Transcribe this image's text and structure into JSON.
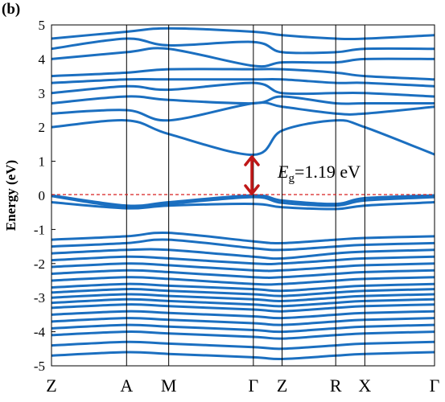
{
  "panel_label": "(b)",
  "gap_annotation": {
    "symbol": "E",
    "subscript": "g",
    "text": "=1.19 eV"
  },
  "colors": {
    "bands": "#1b6fc0",
    "fermi_line": "#d62020",
    "gap_arrow": "#c01818"
  },
  "chart_data": {
    "type": "line",
    "ylabel": "Energy (eV)",
    "ylim": [
      -5,
      5
    ],
    "yticks": [
      "5",
      "4",
      "3",
      "2",
      "1",
      "0",
      "-1",
      "-2",
      "-3",
      "-4",
      "-5"
    ],
    "kpoints": [
      "Z",
      "A",
      "M",
      "Γ",
      "Z",
      "R",
      "X",
      "Γ"
    ],
    "kpoint_positions": [
      0,
      0.196,
      0.306,
      0.527,
      0.602,
      0.742,
      0.818,
      1
    ],
    "fermi_level": 0,
    "band_gap": {
      "value": 1.19,
      "unit": "eV",
      "cbm": 1.19,
      "vbm": 0.0,
      "at": "Γ"
    },
    "series": [
      {
        "values": [
          0.0,
          -0.3,
          -0.2,
          0.0,
          -0.15,
          -0.25,
          -0.08,
          0.0
        ]
      },
      {
        "values": [
          -0.02,
          -0.35,
          -0.25,
          -0.05,
          -0.22,
          -0.3,
          -0.15,
          -0.05
        ]
      },
      {
        "values": [
          -0.2,
          -0.38,
          -0.3,
          -0.25,
          -0.35,
          -0.4,
          -0.3,
          -0.2
        ]
      },
      {
        "values": [
          -1.3,
          -1.2,
          -1.1,
          -1.35,
          -1.4,
          -1.3,
          -1.25,
          -1.2
        ]
      },
      {
        "values": [
          -1.5,
          -1.4,
          -1.3,
          -1.55,
          -1.6,
          -1.5,
          -1.45,
          -1.4
        ]
      },
      {
        "values": [
          -1.7,
          -1.6,
          -1.6,
          -1.8,
          -1.85,
          -1.7,
          -1.65,
          -1.6
        ]
      },
      {
        "values": [
          -1.9,
          -1.8,
          -1.85,
          -2.0,
          -2.0,
          -1.9,
          -1.85,
          -1.8
        ]
      },
      {
        "values": [
          -2.1,
          -2.0,
          -2.05,
          -2.2,
          -2.2,
          -2.1,
          -2.05,
          -2.0
        ]
      },
      {
        "values": [
          -2.3,
          -2.2,
          -2.25,
          -2.4,
          -2.4,
          -2.3,
          -2.25,
          -2.2
        ]
      },
      {
        "values": [
          -2.5,
          -2.4,
          -2.45,
          -2.6,
          -2.6,
          -2.5,
          -2.45,
          -2.4
        ]
      },
      {
        "values": [
          -2.7,
          -2.6,
          -2.65,
          -2.75,
          -2.8,
          -2.7,
          -2.65,
          -2.6
        ]
      },
      {
        "values": [
          -2.85,
          -2.75,
          -2.8,
          -2.9,
          -2.95,
          -2.85,
          -2.8,
          -2.75
        ]
      },
      {
        "values": [
          -3.0,
          -2.9,
          -2.95,
          -3.05,
          -3.1,
          -3.0,
          -2.95,
          -2.9
        ]
      },
      {
        "values": [
          -3.15,
          -3.05,
          -3.1,
          -3.2,
          -3.25,
          -3.15,
          -3.1,
          -3.05
        ]
      },
      {
        "values": [
          -3.3,
          -3.2,
          -3.25,
          -3.35,
          -3.4,
          -3.3,
          -3.25,
          -3.2
        ]
      },
      {
        "values": [
          -3.5,
          -3.4,
          -3.45,
          -3.55,
          -3.6,
          -3.5,
          -3.45,
          -3.4
        ]
      },
      {
        "values": [
          -3.7,
          -3.6,
          -3.65,
          -3.75,
          -3.8,
          -3.7,
          -3.65,
          -3.6
        ]
      },
      {
        "values": [
          -3.9,
          -3.8,
          -3.85,
          -3.95,
          -4.0,
          -3.9,
          -3.85,
          -3.8
        ]
      },
      {
        "values": [
          -4.1,
          -4.0,
          -4.05,
          -4.15,
          -4.2,
          -4.1,
          -4.05,
          -4.0
        ]
      },
      {
        "values": [
          -4.4,
          -4.3,
          -4.35,
          -4.45,
          -4.5,
          -4.4,
          -4.35,
          -4.3
        ]
      },
      {
        "values": [
          -4.7,
          -4.6,
          -4.65,
          -4.75,
          -4.8,
          -4.7,
          -4.65,
          -4.6
        ]
      },
      {
        "values": [
          2.0,
          2.2,
          1.8,
          1.19,
          1.9,
          2.2,
          2.0,
          1.2
        ]
      },
      {
        "values": [
          2.4,
          2.5,
          2.2,
          2.7,
          2.6,
          2.4,
          2.4,
          2.6
        ]
      },
      {
        "values": [
          2.7,
          2.9,
          2.8,
          2.7,
          2.9,
          2.7,
          2.7,
          2.7
        ]
      },
      {
        "values": [
          3.0,
          3.2,
          3.1,
          3.3,
          3.0,
          3.0,
          3.0,
          2.9
        ]
      },
      {
        "values": [
          3.3,
          3.4,
          3.4,
          3.4,
          3.4,
          3.3,
          3.3,
          3.2
        ]
      },
      {
        "values": [
          3.5,
          3.6,
          3.7,
          3.7,
          3.7,
          3.6,
          3.5,
          3.4
        ]
      },
      {
        "values": [
          4.0,
          4.2,
          4.3,
          3.8,
          3.9,
          3.9,
          4.0,
          4.0
        ]
      },
      {
        "values": [
          4.3,
          4.6,
          4.4,
          4.5,
          4.2,
          4.2,
          4.3,
          4.3
        ]
      },
      {
        "values": [
          4.6,
          4.8,
          4.9,
          4.8,
          4.7,
          4.6,
          4.6,
          4.7
        ]
      }
    ]
  }
}
